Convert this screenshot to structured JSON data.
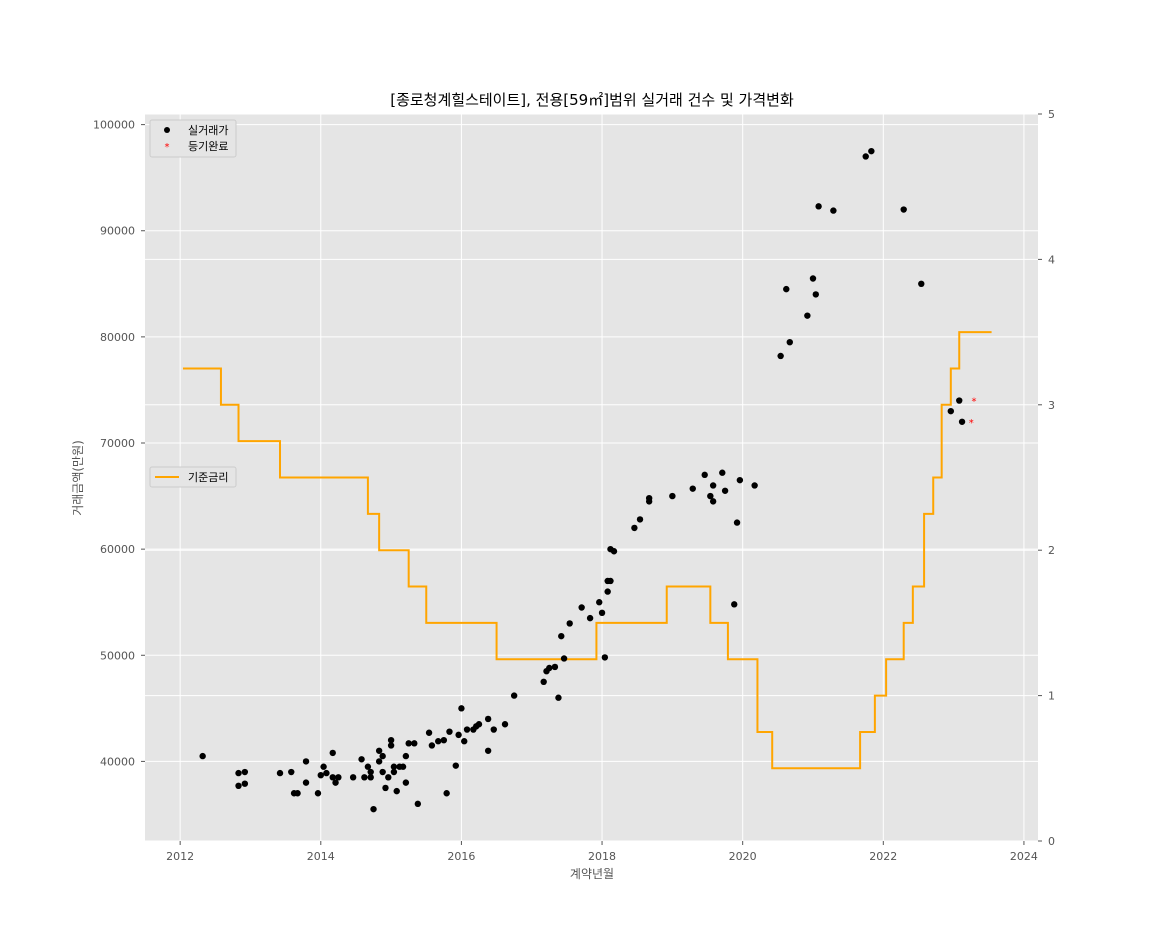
{
  "chart_data": {
    "type": "scatter",
    "title": "[종로청계힐스테이트], 전용[59㎡]범위 실거래 건수 및 가격변화",
    "xlabel": "계약년월",
    "ylabel": "거래금액(만원)",
    "y2label": "",
    "xlim": [
      2011.5,
      2024.2
    ],
    "ylim": [
      32500,
      101000
    ],
    "y2lim": [
      0,
      5
    ],
    "x_ticks": [
      2012,
      2014,
      2016,
      2018,
      2020,
      2022,
      2024
    ],
    "y_ticks": [
      40000,
      50000,
      60000,
      70000,
      80000,
      90000,
      100000
    ],
    "y2_ticks": [
      0,
      1,
      2,
      3,
      4,
      5
    ],
    "grid": true,
    "legend_top": {
      "placement": "top-left",
      "entries": [
        "실거래가",
        "등기완료"
      ]
    },
    "legend_mid": {
      "placement": "center-left",
      "entries": [
        "기준금리"
      ]
    },
    "series": [
      {
        "name": "실거래가",
        "marker": "circle",
        "color": "#000000",
        "axis": "left",
        "points": [
          [
            2012.32,
            40500
          ],
          [
            2012.83,
            38900
          ],
          [
            2012.83,
            37700
          ],
          [
            2012.92,
            39000
          ],
          [
            2012.92,
            37900
          ],
          [
            2013.42,
            38900
          ],
          [
            2013.58,
            39000
          ],
          [
            2013.62,
            37000
          ],
          [
            2013.67,
            37000
          ],
          [
            2013.79,
            40000
          ],
          [
            2013.79,
            38000
          ],
          [
            2013.96,
            37000
          ],
          [
            2014.0,
            38700
          ],
          [
            2014.04,
            39500
          ],
          [
            2014.08,
            38900
          ],
          [
            2014.17,
            38500
          ],
          [
            2014.17,
            40800
          ],
          [
            2014.21,
            38000
          ],
          [
            2014.25,
            38500
          ],
          [
            2014.46,
            38500
          ],
          [
            2014.58,
            40200
          ],
          [
            2014.62,
            38500
          ],
          [
            2014.67,
            39500
          ],
          [
            2014.71,
            38500
          ],
          [
            2014.71,
            39000
          ],
          [
            2014.75,
            35500
          ],
          [
            2014.83,
            41000
          ],
          [
            2014.83,
            40000
          ],
          [
            2014.88,
            40500
          ],
          [
            2014.88,
            39000
          ],
          [
            2014.92,
            37500
          ],
          [
            2014.96,
            38500
          ],
          [
            2015.0,
            42000
          ],
          [
            2015.0,
            41500
          ],
          [
            2015.04,
            39500
          ],
          [
            2015.04,
            39000
          ],
          [
            2015.08,
            37200
          ],
          [
            2015.12,
            39500
          ],
          [
            2015.17,
            39500
          ],
          [
            2015.21,
            40500
          ],
          [
            2015.21,
            38000
          ],
          [
            2015.25,
            41700
          ],
          [
            2015.33,
            41700
          ],
          [
            2015.38,
            36000
          ],
          [
            2015.54,
            42700
          ],
          [
            2015.58,
            41500
          ],
          [
            2015.67,
            41900
          ],
          [
            2015.75,
            42000
          ],
          [
            2015.79,
            37000
          ],
          [
            2015.83,
            42800
          ],
          [
            2015.92,
            39600
          ],
          [
            2015.96,
            42500
          ],
          [
            2016.0,
            45000
          ],
          [
            2016.04,
            41900
          ],
          [
            2016.08,
            43000
          ],
          [
            2016.17,
            43000
          ],
          [
            2016.21,
            43300
          ],
          [
            2016.25,
            43500
          ],
          [
            2016.38,
            44000
          ],
          [
            2016.38,
            41000
          ],
          [
            2016.46,
            43000
          ],
          [
            2016.62,
            43500
          ],
          [
            2016.75,
            46200
          ],
          [
            2017.17,
            47500
          ],
          [
            2017.21,
            48500
          ],
          [
            2017.25,
            48800
          ],
          [
            2017.33,
            48900
          ],
          [
            2017.38,
            46000
          ],
          [
            2017.42,
            51800
          ],
          [
            2017.46,
            49700
          ],
          [
            2017.54,
            53000
          ],
          [
            2017.71,
            54500
          ],
          [
            2017.83,
            53500
          ],
          [
            2017.96,
            55000
          ],
          [
            2018.0,
            54000
          ],
          [
            2018.04,
            49800
          ],
          [
            2018.08,
            56000
          ],
          [
            2018.08,
            57000
          ],
          [
            2018.12,
            57000
          ],
          [
            2018.12,
            60000
          ],
          [
            2018.17,
            59800
          ],
          [
            2018.46,
            62000
          ],
          [
            2018.54,
            62800
          ],
          [
            2018.67,
            64500
          ],
          [
            2018.67,
            64800
          ],
          [
            2019.0,
            65000
          ],
          [
            2019.29,
            65700
          ],
          [
            2019.46,
            67000
          ],
          [
            2019.54,
            65000
          ],
          [
            2019.58,
            64500
          ],
          [
            2019.58,
            66000
          ],
          [
            2019.71,
            67200
          ],
          [
            2019.75,
            65500
          ],
          [
            2019.88,
            54800
          ],
          [
            2019.92,
            62500
          ],
          [
            2019.96,
            66500
          ],
          [
            2020.17,
            66000
          ],
          [
            2020.54,
            78200
          ],
          [
            2020.62,
            84500
          ],
          [
            2020.67,
            79500
          ],
          [
            2020.92,
            82000
          ],
          [
            2021.0,
            85500
          ],
          [
            2021.04,
            84000
          ],
          [
            2021.08,
            92300
          ],
          [
            2021.29,
            91900
          ],
          [
            2021.75,
            97000
          ],
          [
            2021.83,
            97500
          ],
          [
            2022.29,
            92000
          ],
          [
            2022.54,
            85000
          ],
          [
            2022.96,
            73000
          ],
          [
            2023.08,
            74000
          ],
          [
            2023.12,
            72000
          ]
        ]
      },
      {
        "name": "등기완료",
        "marker": "star",
        "color": "#ff0000",
        "axis": "left",
        "points": [
          [
            2023.29,
            74000
          ],
          [
            2023.25,
            72000
          ]
        ]
      },
      {
        "name": "기준금리",
        "type": "step-line",
        "color": "#ffa500",
        "axis": "right",
        "steps": [
          [
            2012.04,
            3.25
          ],
          [
            2012.58,
            3.0
          ],
          [
            2012.83,
            2.75
          ],
          [
            2013.42,
            2.5
          ],
          [
            2014.67,
            2.25
          ],
          [
            2014.83,
            2.0
          ],
          [
            2015.25,
            1.75
          ],
          [
            2015.5,
            1.5
          ],
          [
            2016.5,
            1.25
          ],
          [
            2017.92,
            1.5
          ],
          [
            2018.92,
            1.75
          ],
          [
            2019.54,
            1.5
          ],
          [
            2019.79,
            1.25
          ],
          [
            2020.21,
            0.75
          ],
          [
            2020.42,
            0.5
          ],
          [
            2021.67,
            0.75
          ],
          [
            2021.88,
            1.0
          ],
          [
            2022.04,
            1.25
          ],
          [
            2022.29,
            1.5
          ],
          [
            2022.42,
            1.75
          ],
          [
            2022.58,
            2.25
          ],
          [
            2022.71,
            2.5
          ],
          [
            2022.83,
            3.0
          ],
          [
            2022.96,
            3.25
          ],
          [
            2023.08,
            3.5
          ],
          [
            2023.54,
            3.5
          ]
        ]
      }
    ]
  }
}
